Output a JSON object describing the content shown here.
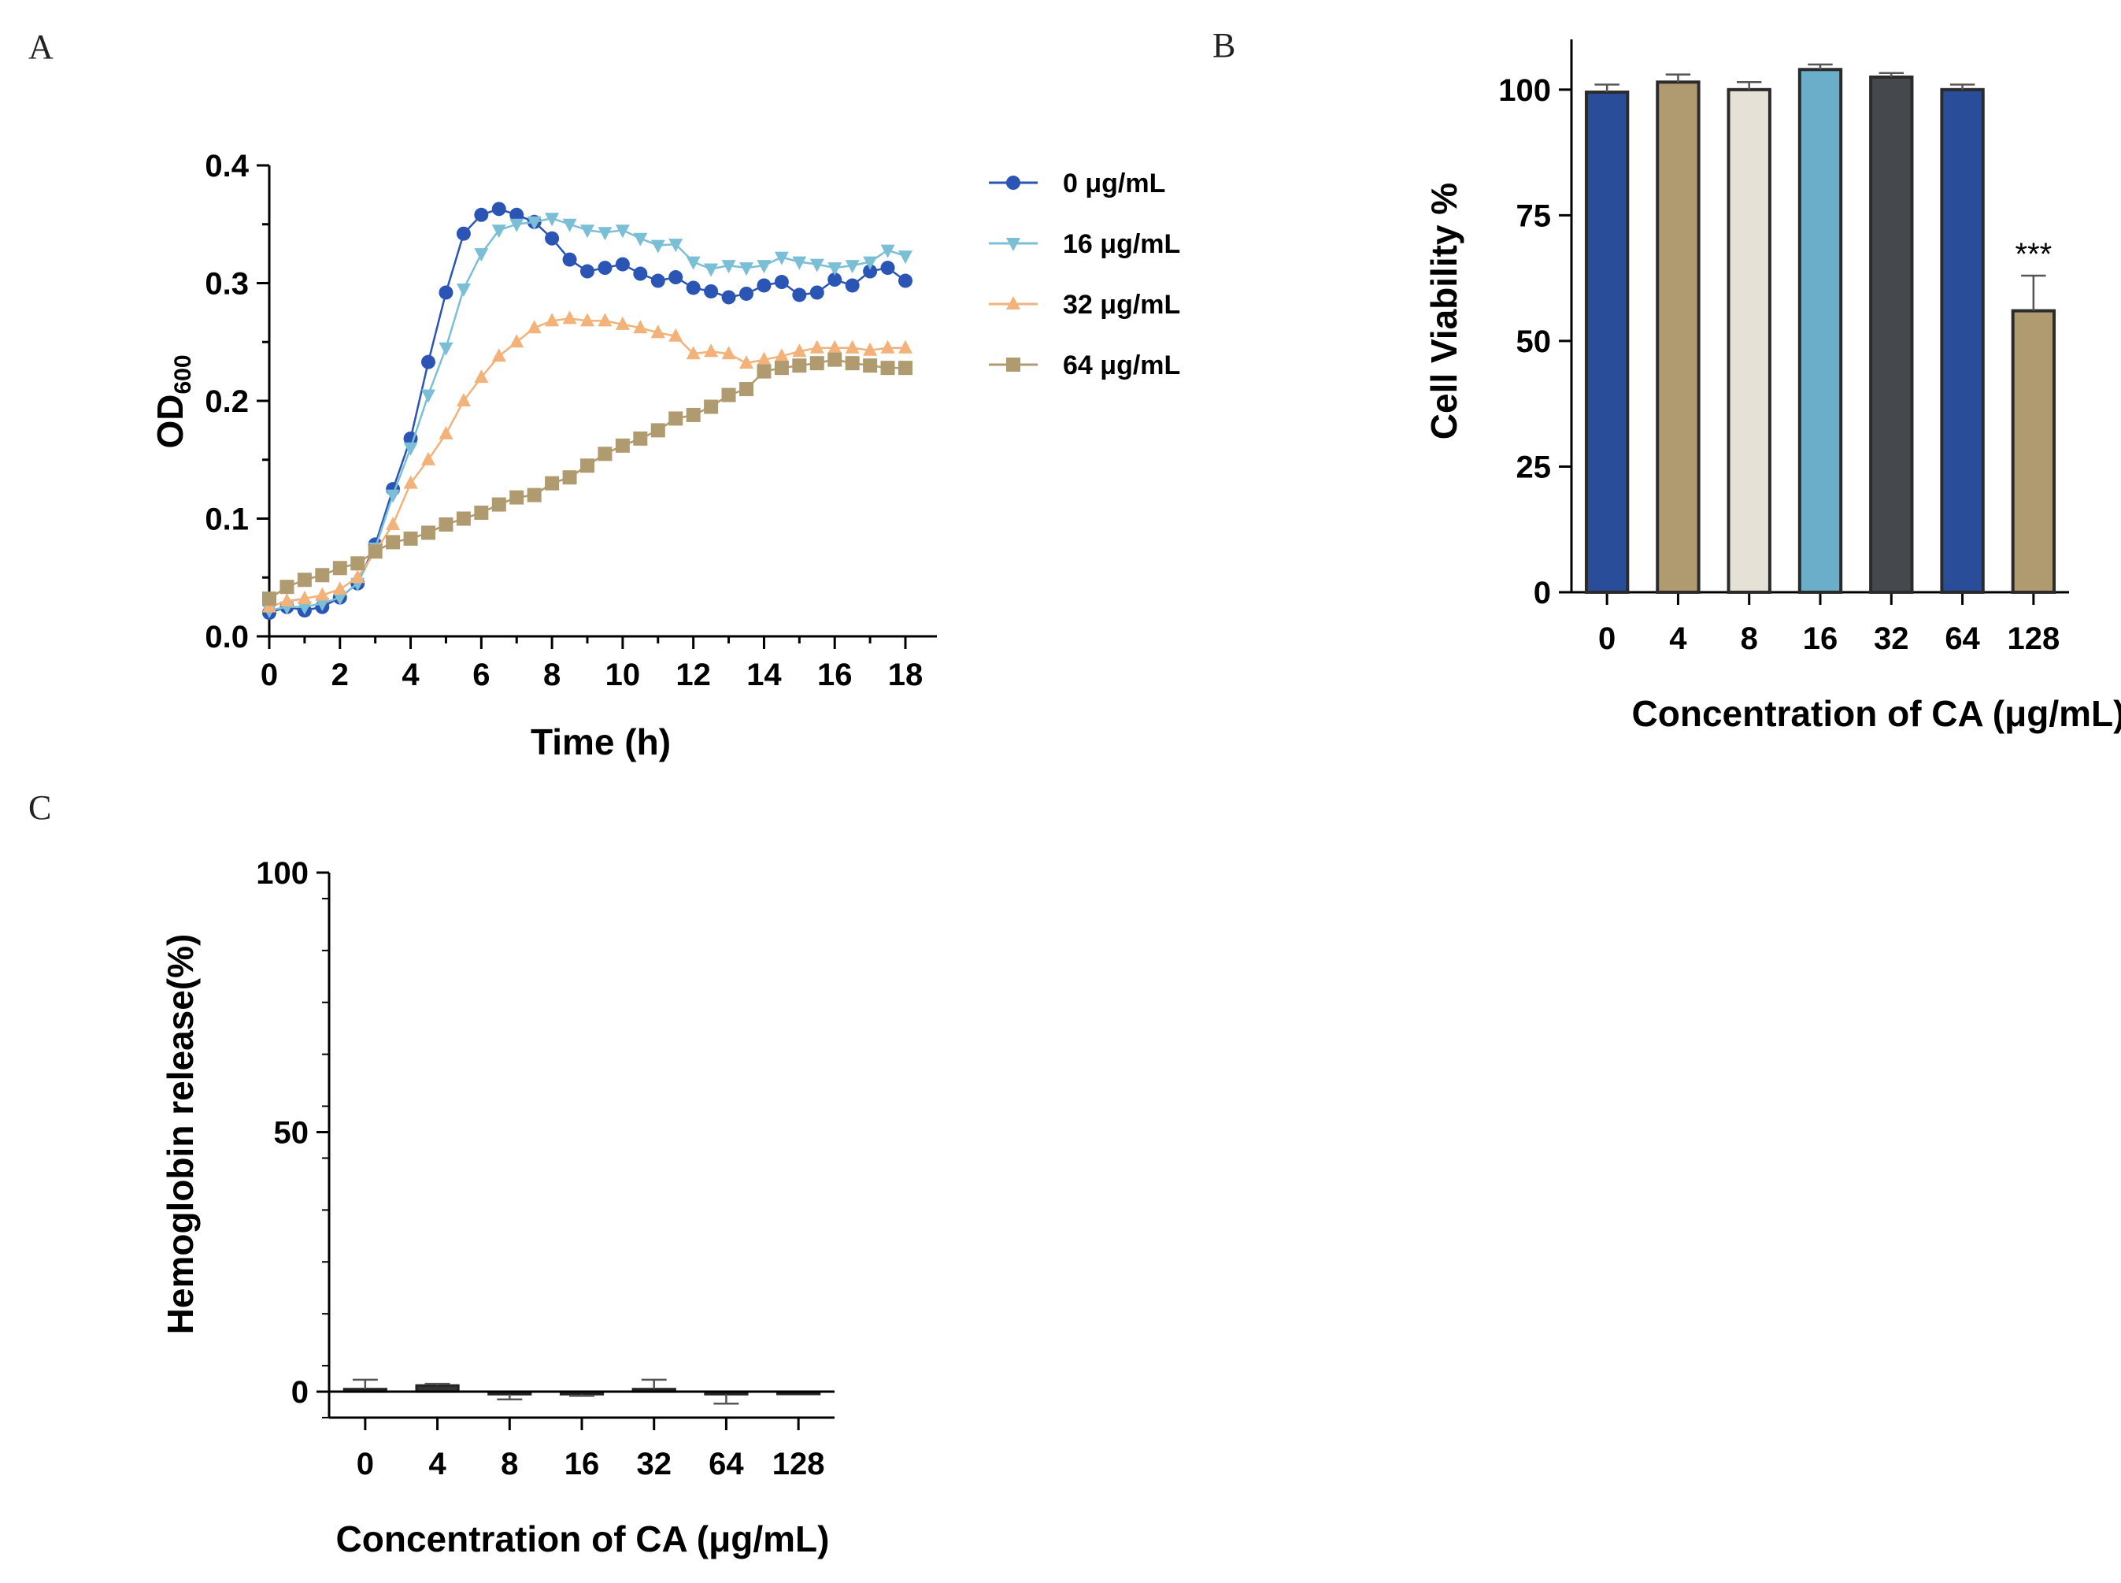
{
  "panels": {
    "A": {
      "letter": "A"
    },
    "B": {
      "letter": "B"
    },
    "C": {
      "letter": "C"
    }
  },
  "chart_data": [
    {
      "id": "A",
      "type": "line",
      "xlabel": "Time (h)",
      "ylabel_main": "OD",
      "ylabel_sub": "600",
      "xlim": [
        0,
        18
      ],
      "ylim": [
        0,
        0.4
      ],
      "xticks": [
        "0",
        "2",
        "4",
        "6",
        "8",
        "10",
        "12",
        "14",
        "16",
        "18"
      ],
      "yticks": [
        "0.0",
        "0.1",
        "0.2",
        "0.3",
        "0.4"
      ],
      "x": [
        0,
        0.5,
        1,
        1.5,
        2,
        2.5,
        3,
        3.5,
        4,
        4.5,
        5,
        5.5,
        6,
        6.5,
        7,
        7.5,
        8,
        8.5,
        9,
        9.5,
        10,
        10.5,
        11,
        11.5,
        12,
        12.5,
        13,
        13.5,
        14,
        14.5,
        15,
        15.5,
        16,
        16.5,
        17,
        17.5,
        18
      ],
      "series": [
        {
          "name": "0 μg/mL",
          "color": "#2b55b5",
          "marker": "circle",
          "values": [
            0.02,
            0.025,
            0.022,
            0.025,
            0.033,
            0.045,
            0.078,
            0.125,
            0.168,
            0.233,
            0.292,
            0.342,
            0.358,
            0.363,
            0.358,
            0.352,
            0.338,
            0.32,
            0.31,
            0.313,
            0.316,
            0.308,
            0.302,
            0.305,
            0.296,
            0.293,
            0.288,
            0.291,
            0.298,
            0.301,
            0.29,
            0.292,
            0.303,
            0.298,
            0.31,
            0.313,
            0.302
          ]
        },
        {
          "name": "16 μg/mL",
          "color": "#7bbfd6",
          "marker": "triangle-down",
          "values": [
            0.022,
            0.025,
            0.025,
            0.028,
            0.033,
            0.045,
            0.075,
            0.12,
            0.16,
            0.205,
            0.245,
            0.295,
            0.325,
            0.345,
            0.35,
            0.352,
            0.355,
            0.35,
            0.345,
            0.343,
            0.345,
            0.338,
            0.332,
            0.333,
            0.318,
            0.312,
            0.315,
            0.313,
            0.315,
            0.322,
            0.318,
            0.316,
            0.313,
            0.315,
            0.318,
            0.328,
            0.323
          ]
        },
        {
          "name": "32 μg/mL",
          "color": "#f2b27a",
          "marker": "triangle-up",
          "values": [
            0.025,
            0.03,
            0.032,
            0.035,
            0.04,
            0.05,
            0.072,
            0.095,
            0.13,
            0.15,
            0.172,
            0.2,
            0.22,
            0.238,
            0.25,
            0.262,
            0.268,
            0.27,
            0.268,
            0.268,
            0.265,
            0.262,
            0.258,
            0.255,
            0.24,
            0.242,
            0.24,
            0.232,
            0.235,
            0.238,
            0.242,
            0.245,
            0.245,
            0.245,
            0.243,
            0.245,
            0.245
          ]
        },
        {
          "name": "64 μg/mL",
          "color": "#b09b70",
          "marker": "square",
          "values": [
            0.032,
            0.042,
            0.048,
            0.052,
            0.058,
            0.062,
            0.072,
            0.08,
            0.083,
            0.088,
            0.095,
            0.1,
            0.105,
            0.112,
            0.118,
            0.12,
            0.13,
            0.135,
            0.145,
            0.155,
            0.162,
            0.168,
            0.175,
            0.185,
            0.188,
            0.195,
            0.205,
            0.21,
            0.225,
            0.228,
            0.23,
            0.232,
            0.235,
            0.232,
            0.23,
            0.228,
            0.228
          ]
        }
      ]
    },
    {
      "id": "B",
      "type": "bar",
      "xlabel": "Concentration of CA (μg/mL)",
      "ylabel": "Cell Viability %",
      "ylim": [
        0,
        110
      ],
      "yticks": [
        "0",
        "25",
        "50",
        "75",
        "100"
      ],
      "categories": [
        "0",
        "4",
        "8",
        "16",
        "32",
        "64",
        "128"
      ],
      "values": [
        99.5,
        101.5,
        100,
        104,
        102.5,
        100,
        56
      ],
      "errors": [
        1.5,
        1.5,
        1.5,
        1,
        0.8,
        1,
        7
      ],
      "colors": [
        "#2a4d9a",
        "#b09b70",
        "#e6e1d7",
        "#6aaec9",
        "#45484d",
        "#2a4d9a",
        "#b09b70"
      ],
      "annotation": {
        "category": "128",
        "text": "***"
      }
    },
    {
      "id": "C",
      "type": "bar",
      "xlabel": "Concentration of CA (μg/mL)",
      "ylabel": "Hemoglobin release(%)",
      "ylim": [
        -5,
        100
      ],
      "yticks": [
        "0",
        "50",
        "100"
      ],
      "categories": [
        "0",
        "4",
        "8",
        "16",
        "32",
        "64",
        "128"
      ],
      "values": [
        0.5,
        1.2,
        -0.5,
        -0.5,
        0.5,
        -0.5,
        0
      ],
      "errors": [
        1.8,
        0.3,
        1,
        0.3,
        1.8,
        1.8,
        0
      ],
      "colors": [
        "#333333",
        "#333333",
        "#333333",
        "#333333",
        "#333333",
        "#333333",
        "#333333"
      ]
    }
  ]
}
